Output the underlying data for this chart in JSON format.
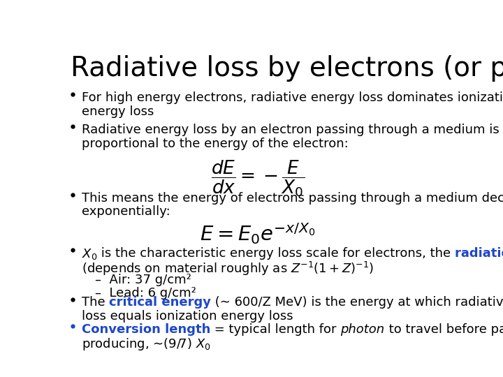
{
  "title": "Radiative loss by electrons (or positrons)",
  "background_color": "#ffffff",
  "title_color": "#000000",
  "title_fontsize": 28,
  "text_fontsize": 13,
  "blue_color": "#1E47CC",
  "bullet1_line1": "For high energy electrons, radiative energy loss dominates ionization",
  "bullet1_line2": "energy loss",
  "bullet2_line1": "Radiative energy loss by an electron passing through a medium is",
  "bullet2_line2": "proportional to the energy of the electron:",
  "bullet3_line1": "This means the energy of electrons passing through a medium decreases",
  "bullet3_line2": "exponentially:",
  "bullet4_line2": "(depends on material roughly as $Z^{-1}(1+Z)^{-1}$)",
  "sub_air": "–  Air: 37 g/cm²",
  "sub_lead": "–  Lead: 6 g/cm²",
  "bullet5_line2": "loss equals ionization energy loss",
  "bullet6_line2": "producing, ∼(9/7) $X_0$"
}
